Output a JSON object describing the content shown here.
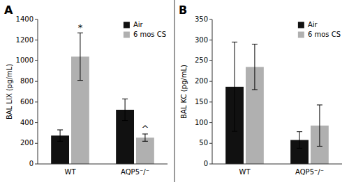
{
  "chart_data": [
    {
      "type": "bar",
      "title": "A",
      "ylabel": "BAL LIX (pg/mL)",
      "categories": [
        "WT",
        "AQP5⁻/⁻"
      ],
      "series": [
        {
          "name": "Air",
          "color": "#111111",
          "values": [
            275,
            525
          ],
          "errors": [
            55,
            105
          ]
        },
        {
          "name": "6 mos CS",
          "color": "#b0b0b0",
          "values": [
            1040,
            255
          ],
          "errors": [
            230,
            35
          ]
        }
      ],
      "ylim": [
        0,
        1400
      ],
      "yticks": [
        0,
        200,
        400,
        600,
        800,
        1000,
        1200,
        1400
      ],
      "grid": false,
      "legend": "upper right",
      "annotations": [
        {
          "text": "*",
          "category": "WT",
          "series": "6 mos CS"
        },
        {
          "text": "^",
          "category": "AQP5⁻/⁻",
          "series": "6 mos CS"
        }
      ]
    },
    {
      "type": "bar",
      "title": "B",
      "ylabel": "BAL KC (pg/mL)",
      "categories": [
        "WT",
        "AQP5⁻/⁻"
      ],
      "series": [
        {
          "name": "Air",
          "color": "#111111",
          "values": [
            187,
            58
          ],
          "errors": [
            108,
            20
          ]
        },
        {
          "name": "6 mos CS",
          "color": "#b0b0b0",
          "values": [
            235,
            93
          ],
          "errors": [
            55,
            50
          ]
        }
      ],
      "ylim": [
        0,
        350
      ],
      "yticks": [
        0,
        50,
        100,
        150,
        200,
        250,
        300,
        350
      ],
      "grid": false,
      "legend": "upper right"
    }
  ]
}
